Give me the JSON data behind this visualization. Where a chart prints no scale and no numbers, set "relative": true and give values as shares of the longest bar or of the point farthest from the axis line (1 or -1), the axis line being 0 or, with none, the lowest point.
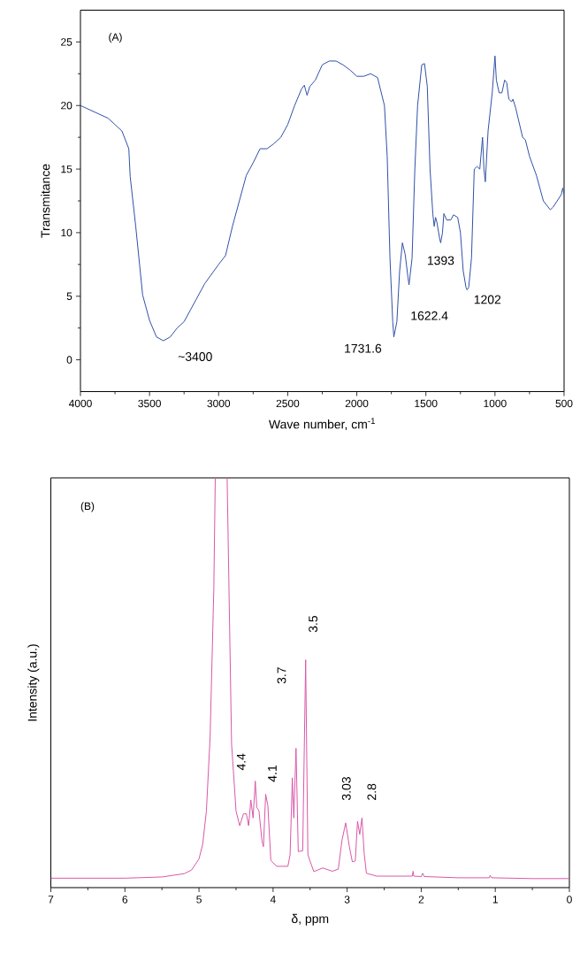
{
  "chart_data": [
    {
      "type": "line",
      "xlabel": "Wave number, cm$^{-1}$",
      "ylabel": "Transmitance",
      "xlim": [
        4000,
        500
      ],
      "ylim": [
        -2.5,
        27.5
      ],
      "xticks": [
        4000,
        3500,
        3000,
        2500,
        2000,
        1500,
        1000,
        500
      ],
      "yticks": [
        0,
        5,
        10,
        15,
        20,
        25
      ],
      "annotations": [
        "(A)",
        {
          "text": "~3400",
          "x": 3400,
          "y": 1.5
        },
        {
          "text": "1731.6",
          "x": 1732,
          "y": 1.8
        },
        {
          "text": "1622.4",
          "x": 1622,
          "y": 5.9
        },
        {
          "text": "1393",
          "x": 1393,
          "y": 9.2
        },
        {
          "text": "1202",
          "x": 1202,
          "y": 5.5
        }
      ],
      "series": [
        {
          "color": "#3050a8",
          "x": [
            4000,
            3900,
            3800,
            3700,
            3650,
            3640,
            3600,
            3550,
            3500,
            3450,
            3400,
            3350,
            3300,
            3250,
            3200,
            3100,
            3000,
            2950,
            2900,
            2800,
            2750,
            2700,
            2650,
            2600,
            2550,
            2500,
            2450,
            2400,
            2380,
            2360,
            2340,
            2300,
            2250,
            2200,
            2150,
            2100,
            2050,
            2000,
            1950,
            1900,
            1850,
            1800,
            1780,
            1760,
            1740,
            1732,
            1710,
            1690,
            1670,
            1650,
            1630,
            1622,
            1600,
            1580,
            1560,
            1530,
            1510,
            1490,
            1470,
            1450,
            1440,
            1430,
            1420,
            1400,
            1393,
            1380,
            1370,
            1350,
            1320,
            1300,
            1270,
            1250,
            1230,
            1210,
            1202,
            1190,
            1170,
            1150,
            1130,
            1110,
            1090,
            1080,
            1070,
            1050,
            1020,
            1000,
            990,
            970,
            950,
            930,
            915,
            900,
            880,
            870,
            850,
            800,
            780,
            750,
            700,
            650,
            600,
            580,
            550,
            520,
            510,
            500
          ],
          "values": [
            20.0,
            19.5,
            19.0,
            18.0,
            16.6,
            14.4,
            10.5,
            5.1,
            3.1,
            1.8,
            1.5,
            1.8,
            2.5,
            3.0,
            4.0,
            6.0,
            7.5,
            8.2,
            10.5,
            14.5,
            15.5,
            16.6,
            16.6,
            17.0,
            17.5,
            18.5,
            20.0,
            21.3,
            21.6,
            20.8,
            21.5,
            22.0,
            23.2,
            23.5,
            23.5,
            23.2,
            22.8,
            22.3,
            22.3,
            22.5,
            22.2,
            20.0,
            16.0,
            8.0,
            3.0,
            1.8,
            3.0,
            7.0,
            9.2,
            8.3,
            6.5,
            5.9,
            8.0,
            15.0,
            20.0,
            23.2,
            23.3,
            21.5,
            15.0,
            11.5,
            10.5,
            11.2,
            10.8,
            9.5,
            9.2,
            10.0,
            11.5,
            11.0,
            11.0,
            11.4,
            11.2,
            10.0,
            7.0,
            5.7,
            5.5,
            5.7,
            8.0,
            15.0,
            15.2,
            15.0,
            17.5,
            15.0,
            14.0,
            18.0,
            21.0,
            23.9,
            22.0,
            21.0,
            21.0,
            22.0,
            21.8,
            20.5,
            20.3,
            20.5,
            19.8,
            17.5,
            17.3,
            16.0,
            14.5,
            12.5,
            11.8,
            12.0,
            12.5,
            13.0,
            13.5,
            13.0
          ]
        }
      ]
    },
    {
      "type": "line",
      "relative": true,
      "xlabel": "δ, ppm",
      "ylabel": "Intensity (a.u.)",
      "xlim": [
        7,
        0
      ],
      "xticks": [
        7,
        6,
        5,
        4,
        3,
        2,
        1,
        0
      ],
      "annotations": [
        "(B)",
        "4.4",
        {
          "text": "4.1",
          "x": 4.1,
          "y": 0.228
        },
        "3.7",
        {
          "text": "3.5",
          "x": 3.56,
          "y": 0.556
        },
        {
          "text": "3.03",
          "x": 3.02,
          "y": 0.158
        },
        {
          "text": "2.8",
          "x": 2.8,
          "y": 0.17
        }
      ],
      "series": [
        {
          "color": "#d957a8",
          "x": [
            7.0,
            6.0,
            5.5,
            5.2,
            5.1,
            5.0,
            4.95,
            4.9,
            4.85,
            4.8,
            4.78,
            4.7,
            4.62,
            4.56,
            4.53,
            4.5,
            4.45,
            4.4,
            4.36,
            4.33,
            4.3,
            4.27,
            4.24,
            4.22,
            4.19,
            4.15,
            4.13,
            4.1,
            4.07,
            4.03,
            3.95,
            3.8,
            3.77,
            3.74,
            3.72,
            3.69,
            3.66,
            3.6,
            3.56,
            3.53,
            3.45,
            3.33,
            3.2,
            3.12,
            3.07,
            3.02,
            2.97,
            2.93,
            2.89,
            2.86,
            2.83,
            2.8,
            2.77,
            2.74,
            2.6,
            2.12,
            2.11,
            2.1,
            2.0,
            1.98,
            1.96,
            1.5,
            1.08,
            1.07,
            1.05,
            0.5,
            0.0
          ],
          "values": [
            0.023,
            0.023,
            0.026,
            0.034,
            0.043,
            0.07,
            0.106,
            0.187,
            0.367,
            0.727,
            1.0,
            null,
            1.0,
            0.35,
            0.27,
            0.187,
            0.151,
            0.18,
            0.18,
            0.151,
            0.214,
            0.17,
            0.26,
            0.196,
            0.187,
            0.115,
            0.1,
            0.228,
            0.2,
            0.066,
            0.052,
            0.052,
            0.08,
            0.268,
            0.17,
            0.34,
            0.088,
            0.09,
            0.556,
            0.08,
            0.039,
            0.048,
            0.04,
            0.045,
            0.115,
            0.158,
            0.1,
            0.063,
            0.065,
            0.162,
            0.13,
            0.17,
            0.084,
            0.035,
            0.028,
            0.028,
            0.04,
            0.028,
            0.027,
            0.035,
            0.027,
            0.024,
            0.024,
            0.03,
            0.024,
            0.022,
            0.022
          ]
        }
      ]
    }
  ]
}
